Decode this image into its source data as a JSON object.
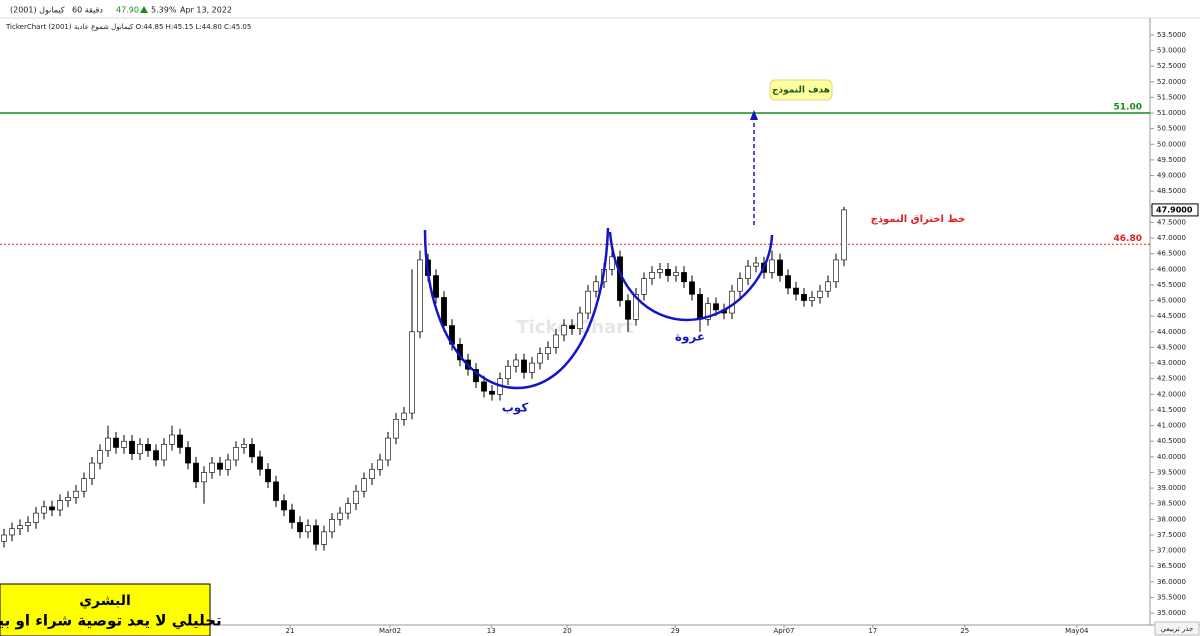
{
  "header": {
    "symbol": "كيمانول (2001)",
    "interval": "60 دقيقة",
    "price": "47.90",
    "change": "5.39%",
    "date": "Apr 13, 2022",
    "ohlc_line": "TickerChart كيمانول شموع عادية (2001) O:44.85 H:45.15 L:44.80 C:45.05"
  },
  "footer": {
    "author": "البشري",
    "disclaimer": "تحليلي لا يعد توصية شراء او بيع",
    "scale_button": "جذر تربيعي"
  },
  "chart_data": {
    "type": "candlestick",
    "x": [
      0,
      1,
      2,
      3,
      4,
      5,
      6,
      7,
      8,
      9,
      10,
      11,
      12,
      13,
      14,
      15,
      16,
      17,
      18,
      19,
      20,
      21,
      22,
      23,
      24,
      25,
      26,
      27,
      28,
      29,
      30,
      31,
      32,
      33,
      34,
      35,
      36,
      37,
      38,
      39,
      40,
      41,
      42,
      43,
      44,
      45,
      46,
      47,
      48,
      49,
      50,
      51,
      52,
      53,
      54,
      55,
      56,
      57,
      58,
      59,
      60,
      61,
      62,
      63,
      64,
      65,
      66,
      67,
      68,
      69,
      70,
      71,
      72,
      73,
      74,
      75,
      76,
      77,
      78,
      79,
      80,
      81,
      82,
      83,
      84,
      85,
      86,
      87,
      88,
      89,
      90,
      91,
      92,
      93,
      94,
      95,
      96,
      97,
      98,
      99,
      100,
      101,
      102,
      103,
      104,
      105
    ],
    "open": [
      37.3,
      37.5,
      37.7,
      37.8,
      37.9,
      38.2,
      38.4,
      38.3,
      38.6,
      38.7,
      38.9,
      39.3,
      39.8,
      40.2,
      40.6,
      40.3,
      40.5,
      40.1,
      40.4,
      40.2,
      39.9,
      40.4,
      40.7,
      40.3,
      39.8,
      39.2,
      39.5,
      39.8,
      39.6,
      39.9,
      40.3,
      40.4,
      40.0,
      39.6,
      39.2,
      38.6,
      38.3,
      37.9,
      37.6,
      37.8,
      37.2,
      37.6,
      38.0,
      38.2,
      38.5,
      38.9,
      39.3,
      39.6,
      39.9,
      40.6,
      41.2,
      41.4,
      44.0,
      46.3,
      45.8,
      45.1,
      44.2,
      43.6,
      43.1,
      42.8,
      42.4,
      42.1,
      42.0,
      42.5,
      42.9,
      43.1,
      42.7,
      43.0,
      43.3,
      43.5,
      43.9,
      44.2,
      44.1,
      44.6,
      45.3,
      45.6,
      46.0,
      46.4,
      45.0,
      44.4,
      45.2,
      45.7,
      45.9,
      46.0,
      45.8,
      45.9,
      45.6,
      45.2,
      44.4,
      44.9,
      44.7,
      44.6,
      45.3,
      45.7,
      46.1,
      46.2,
      45.9,
      46.3,
      45.8,
      45.4,
      45.2,
      45.0,
      45.1,
      45.3,
      45.6,
      46.3
    ],
    "high": [
      37.7,
      37.9,
      38.0,
      38.1,
      38.4,
      38.6,
      38.6,
      38.8,
      38.9,
      39.1,
      39.5,
      40.0,
      40.4,
      41.0,
      40.8,
      40.7,
      40.7,
      40.6,
      40.6,
      40.4,
      40.6,
      41.0,
      40.9,
      40.5,
      40.0,
      39.7,
      40.0,
      40.0,
      40.1,
      40.5,
      40.6,
      40.6,
      40.2,
      39.8,
      39.4,
      38.8,
      38.5,
      38.1,
      38.0,
      38.0,
      37.8,
      38.2,
      38.4,
      38.7,
      39.1,
      39.5,
      39.8,
      40.1,
      40.8,
      41.4,
      41.6,
      46.0,
      46.6,
      46.5,
      46.0,
      45.3,
      44.4,
      43.8,
      43.3,
      43.0,
      42.6,
      42.3,
      42.7,
      43.1,
      43.3,
      43.3,
      43.2,
      43.5,
      43.7,
      44.1,
      44.4,
      44.4,
      44.8,
      45.5,
      45.8,
      46.2,
      46.8,
      46.6,
      45.2,
      45.4,
      45.9,
      46.1,
      46.2,
      46.2,
      46.1,
      46.1,
      45.8,
      45.4,
      45.1,
      45.1,
      44.9,
      45.5,
      45.9,
      46.3,
      46.4,
      46.4,
      46.6,
      46.5,
      46.0,
      45.6,
      45.4,
      45.3,
      45.5,
      45.8,
      46.5,
      48.0
    ],
    "low": [
      37.1,
      37.3,
      37.5,
      37.6,
      37.7,
      38.0,
      38.1,
      38.1,
      38.4,
      38.5,
      38.7,
      39.1,
      39.6,
      40.0,
      40.1,
      40.1,
      39.9,
      39.9,
      40.0,
      39.7,
      39.7,
      40.2,
      40.1,
      39.6,
      39.0,
      38.5,
      39.3,
      39.4,
      39.4,
      39.7,
      40.1,
      39.8,
      39.4,
      39.0,
      38.4,
      38.1,
      37.7,
      37.4,
      37.4,
      37.0,
      37.0,
      37.4,
      37.8,
      38.0,
      38.3,
      38.7,
      39.1,
      39.4,
      39.7,
      40.4,
      41.0,
      41.2,
      43.8,
      45.6,
      44.9,
      44.0,
      43.4,
      42.9,
      42.6,
      42.2,
      41.9,
      41.8,
      41.8,
      42.3,
      42.7,
      42.5,
      42.5,
      42.8,
      43.1,
      43.3,
      43.7,
      43.9,
      43.9,
      44.4,
      45.1,
      45.4,
      45.8,
      44.8,
      44.0,
      44.2,
      45.0,
      45.5,
      45.7,
      45.6,
      45.6,
      45.4,
      45.0,
      44.0,
      44.2,
      44.5,
      44.4,
      44.4,
      45.1,
      45.5,
      45.9,
      45.7,
      45.7,
      45.6,
      45.2,
      45.0,
      44.8,
      44.8,
      44.9,
      45.1,
      45.4,
      46.1
    ],
    "close": [
      37.5,
      37.7,
      37.8,
      37.9,
      38.2,
      38.4,
      38.3,
      38.6,
      38.7,
      38.9,
      39.3,
      39.8,
      40.2,
      40.6,
      40.3,
      40.5,
      40.1,
      40.4,
      40.2,
      39.9,
      40.4,
      40.7,
      40.3,
      39.8,
      39.2,
      39.5,
      39.8,
      39.6,
      39.9,
      40.3,
      40.4,
      40.0,
      39.6,
      39.2,
      38.6,
      38.3,
      37.9,
      37.6,
      37.8,
      37.2,
      37.6,
      38.0,
      38.2,
      38.5,
      38.9,
      39.3,
      39.6,
      39.9,
      40.6,
      41.2,
      41.4,
      44.0,
      46.3,
      45.8,
      45.1,
      44.2,
      43.6,
      43.1,
      42.8,
      42.4,
      42.1,
      42.0,
      42.5,
      42.9,
      43.1,
      42.7,
      43.0,
      43.3,
      43.5,
      43.9,
      44.2,
      44.1,
      44.6,
      45.3,
      45.6,
      46.0,
      46.4,
      45.0,
      44.4,
      45.2,
      45.7,
      45.9,
      46.0,
      45.8,
      45.9,
      45.6,
      45.2,
      44.4,
      44.9,
      44.7,
      44.6,
      45.3,
      45.7,
      46.1,
      46.2,
      45.9,
      46.3,
      45.8,
      45.4,
      45.2,
      45.0,
      45.1,
      45.3,
      45.6,
      46.3,
      47.9
    ],
    "up_color": "#ffffff",
    "down_color": "#000000",
    "wick_color": "#000000",
    "xlim": [
      -0.5,
      143.25
    ],
    "xticks": [
      {
        "value": 35.75,
        "label": "21"
      },
      {
        "value": 48.25,
        "label": "Mar02"
      },
      {
        "value": 60.9,
        "label": "13"
      },
      {
        "value": 70.4,
        "label": "20"
      },
      {
        "value": 83.9,
        "label": "29"
      },
      {
        "value": 97.5,
        "label": "Apr07"
      },
      {
        "value": 108.6,
        "label": "17"
      },
      {
        "value": 120.1,
        "label": "25"
      },
      {
        "value": 134.1,
        "label": "May04"
      }
    ],
    "ylim": [
      34.62,
      54.04
    ],
    "yticks": [
      {
        "value": 35,
        "label": "35.0000"
      },
      {
        "value": 35.5,
        "label": "35.5000"
      },
      {
        "value": 36,
        "label": "36.0000"
      },
      {
        "value": 36.5,
        "label": "36.5000"
      },
      {
        "value": 37,
        "label": "37.0000"
      },
      {
        "value": 37.5,
        "label": "37.5000"
      },
      {
        "value": 38,
        "label": "38.0000"
      },
      {
        "value": 38.5,
        "label": "38.5000"
      },
      {
        "value": 39,
        "label": "39.0000"
      },
      {
        "value": 39.5,
        "label": "39.5000"
      },
      {
        "value": 40,
        "label": "40.0000"
      },
      {
        "value": 40.5,
        "label": "40.5000"
      },
      {
        "value": 41,
        "label": "41.0000"
      },
      {
        "value": 41.5,
        "label": "41.5000"
      },
      {
        "value": 42,
        "label": "42.0000"
      },
      {
        "value": 42.5,
        "label": "42.5000"
      },
      {
        "value": 43,
        "label": "43.0000"
      },
      {
        "value": 43.5,
        "label": "43.5000"
      },
      {
        "value": 44,
        "label": "44.0000"
      },
      {
        "value": 44.5,
        "label": "44.5000"
      },
      {
        "value": 45,
        "label": "45.0000"
      },
      {
        "value": 45.5,
        "label": "45.5000"
      },
      {
        "value": 46,
        "label": "46.0000"
      },
      {
        "value": 46.5,
        "label": "46.5000"
      },
      {
        "value": 47,
        "label": "47.0000"
      },
      {
        "value": 47.5,
        "label": "47.5000"
      },
      {
        "value": 48,
        "label": "48.0000"
      },
      {
        "value": 48.5,
        "label": "48.5000"
      },
      {
        "value": 49,
        "label": "49.0000"
      },
      {
        "value": 49.5,
        "label": "49.5000"
      },
      {
        "value": 50,
        "label": "50.0000"
      },
      {
        "value": 50.5,
        "label": "50.5000"
      },
      {
        "value": 51,
        "label": "51.0000"
      },
      {
        "value": 51.5,
        "label": "51.5000"
      },
      {
        "value": 52,
        "label": "52.0000"
      },
      {
        "value": 52.5,
        "label": "52.5000"
      },
      {
        "value": 53,
        "label": "53.0000"
      },
      {
        "value": 53.5,
        "label": "53.5000"
      }
    ],
    "hlines": [
      {
        "value": 51,
        "label": "51.00",
        "color": "#1a8c1a",
        "style": "solid"
      },
      {
        "value": 46.8,
        "label": "46.80",
        "color": "#e02020",
        "style": "dotted"
      }
    ],
    "last_price": {
      "value": 47.9,
      "label": "47.9000"
    },
    "annotations": {
      "cup": "كوب",
      "handle": "عروة",
      "target": "هدف النموذج",
      "breakout": "خط اختراق النموذج"
    },
    "watermark": "TickerChart"
  }
}
